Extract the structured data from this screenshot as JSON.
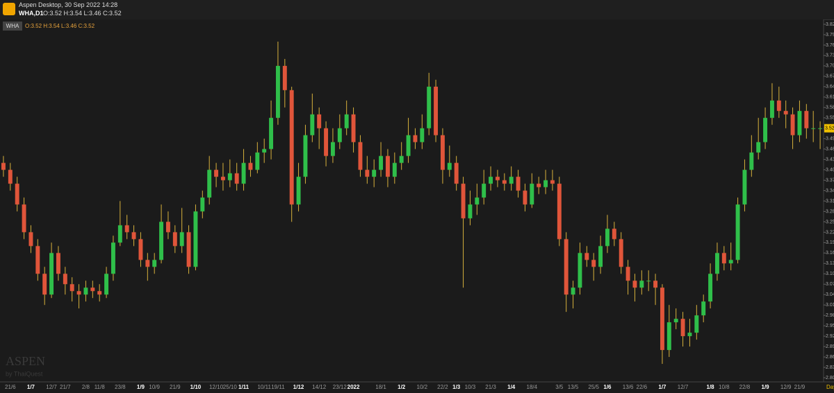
{
  "header": {
    "app": "Aspen Desktop, 30 Sep 2022 14:28",
    "symbol": "WHA,D1",
    "ohlc": "O:3.52 H:3.54 L:3.46 C:3.52"
  },
  "chart_data": {
    "type": "candlestick",
    "legend": {
      "symbol": "WHA",
      "ohlc": "O:3.52 H:3.54 L:3.46 C:3.52"
    },
    "watermark": {
      "brand": "ASPEN",
      "by": "by ThaiQuest"
    },
    "timeframe": "Day",
    "up_color": "#2fbf4a",
    "down_color": "#e0553a",
    "last_price_color": "#f0c000",
    "ylim": [
      2.788,
      3.834
    ],
    "yticks": [
      {
        "value": 2.8,
        "label": "2.80"
      },
      2.83,
      2.86,
      2.89,
      2.92,
      2.95,
      2.98,
      3.01,
      3.04,
      3.07,
      {
        "value": 3.1,
        "label": "3.10"
      },
      3.13,
      3.16,
      3.19,
      3.22,
      3.25,
      3.28,
      3.31,
      3.34,
      3.37,
      {
        "value": 3.4,
        "label": "3.40"
      },
      3.43,
      3.46,
      3.49,
      3.52,
      3.55,
      3.58,
      3.61,
      3.64,
      3.67,
      {
        "value": 3.7,
        "label": "3.70"
      },
      3.73,
      3.76,
      3.79,
      3.82
    ],
    "categories": [
      null,
      "21/6",
      null,
      null,
      "1/7",
      null,
      null,
      "12/7",
      null,
      "21/7",
      null,
      null,
      "2/8",
      null,
      "11/8",
      null,
      null,
      "23/8",
      null,
      null,
      "1/9",
      null,
      "10/9",
      null,
      null,
      "21/9",
      null,
      null,
      "1/10",
      null,
      null,
      "12/10",
      null,
      "25/10",
      null,
      "1/11",
      null,
      null,
      "10/11",
      null,
      "19/11",
      null,
      null,
      "1/12",
      null,
      null,
      "14/12",
      null,
      null,
      "23/12",
      null,
      "2022",
      null,
      null,
      null,
      "18/1",
      null,
      null,
      "1/2",
      null,
      null,
      "10/2",
      null,
      null,
      "22/2",
      null,
      "1/3",
      null,
      "10/3",
      null,
      null,
      "21/3",
      null,
      null,
      "1/4",
      null,
      null,
      "18/4",
      null,
      null,
      null,
      "3/5",
      null,
      "13/5",
      null,
      null,
      "25/5",
      null,
      "1/6",
      null,
      null,
      "13/6",
      null,
      "22/6",
      null,
      null,
      "1/7",
      null,
      null,
      "12/7",
      null,
      null,
      null,
      "1/8",
      null,
      "10/8",
      null,
      null,
      "22/8",
      null,
      null,
      "1/9",
      null,
      null,
      "12/9",
      null,
      "21/9",
      null,
      null,
      null
    ],
    "open": [
      3.42,
      3.4,
      3.36,
      3.3,
      3.22,
      3.18,
      3.1,
      3.04,
      3.16,
      3.1,
      3.07,
      3.05,
      3.04,
      3.06,
      3.05,
      3.04,
      3.1,
      3.19,
      3.24,
      3.22,
      3.2,
      3.14,
      3.12,
      3.14,
      3.25,
      3.22,
      3.18,
      3.22,
      3.12,
      3.28,
      3.32,
      3.4,
      3.38,
      3.37,
      3.39,
      3.36,
      3.42,
      3.4,
      3.45,
      3.46,
      3.55,
      3.7,
      3.63,
      3.3,
      3.38,
      3.5,
      3.56,
      3.52,
      3.44,
      3.48,
      3.52,
      3.56,
      3.48,
      3.4,
      3.38,
      3.4,
      3.44,
      3.38,
      3.42,
      3.44,
      3.5,
      3.48,
      3.52,
      3.64,
      3.5,
      3.4,
      3.42,
      3.36,
      3.26,
      3.3,
      3.32,
      3.36,
      3.38,
      3.37,
      3.36,
      3.38,
      3.34,
      3.3,
      3.36,
      3.35,
      3.37,
      3.36,
      3.2,
      3.04,
      3.06,
      3.16,
      3.14,
      3.12,
      3.18,
      3.23,
      3.2,
      3.12,
      3.08,
      3.06,
      3.08,
      3.08,
      3.06,
      2.88,
      2.96,
      2.97,
      2.92,
      2.93,
      2.98,
      3.02,
      3.1,
      3.16,
      3.13,
      3.14,
      3.3,
      3.4,
      3.45,
      3.48,
      3.55,
      3.6,
      3.57,
      3.56,
      3.5,
      3.57,
      3.52,
      3.52
    ],
    "high": [
      3.44,
      3.42,
      3.38,
      3.32,
      3.24,
      3.2,
      3.12,
      3.19,
      3.18,
      3.12,
      3.09,
      3.07,
      3.08,
      3.08,
      3.07,
      3.12,
      3.21,
      3.31,
      3.27,
      3.24,
      3.22,
      3.16,
      3.16,
      3.3,
      3.28,
      3.24,
      3.29,
      3.24,
      3.3,
      3.34,
      3.44,
      3.42,
      3.42,
      3.43,
      3.42,
      3.46,
      3.44,
      3.48,
      3.49,
      3.6,
      3.77,
      3.72,
      3.64,
      3.42,
      3.53,
      3.62,
      3.58,
      3.54,
      3.52,
      3.56,
      3.6,
      3.58,
      3.5,
      3.44,
      3.43,
      3.48,
      3.46,
      3.45,
      3.48,
      3.55,
      3.52,
      3.56,
      3.68,
      3.66,
      3.52,
      3.47,
      3.44,
      3.38,
      3.34,
      3.36,
      3.4,
      3.41,
      3.4,
      3.39,
      3.41,
      3.4,
      3.36,
      3.39,
      3.38,
      3.4,
      3.4,
      3.38,
      3.22,
      3.08,
      3.19,
      3.18,
      3.16,
      3.21,
      3.27,
      3.25,
      3.22,
      3.14,
      3.1,
      3.11,
      3.11,
      3.1,
      3.07,
      3.01,
      3.0,
      2.99,
      2.97,
      3.01,
      3.04,
      3.13,
      3.19,
      3.18,
      3.19,
      3.32,
      3.43,
      3.5,
      3.55,
      3.58,
      3.65,
      3.64,
      3.6,
      3.58,
      3.6,
      3.59,
      3.57,
      3.54
    ],
    "low": [
      3.38,
      3.34,
      3.28,
      3.2,
      3.16,
      3.08,
      3.01,
      3.03,
      3.08,
      3.04,
      3.02,
      3.0,
      3.02,
      3.03,
      3.02,
      3.03,
      3.08,
      3.18,
      3.2,
      3.18,
      3.12,
      3.08,
      3.1,
      3.13,
      3.2,
      3.16,
      3.16,
      3.1,
      3.11,
      3.26,
      3.3,
      3.35,
      3.34,
      3.35,
      3.34,
      3.34,
      3.38,
      3.39,
      3.42,
      3.43,
      3.53,
      3.58,
      3.25,
      3.28,
      3.36,
      3.48,
      3.46,
      3.41,
      3.42,
      3.46,
      3.5,
      3.45,
      3.38,
      3.36,
      3.35,
      3.38,
      3.35,
      3.36,
      3.4,
      3.42,
      3.46,
      3.46,
      3.5,
      3.48,
      3.36,
      3.38,
      3.34,
      3.06,
      3.24,
      3.27,
      3.3,
      3.34,
      3.35,
      3.34,
      3.34,
      3.32,
      3.28,
      3.29,
      3.33,
      3.33,
      3.34,
      3.18,
      2.99,
      3.0,
      3.04,
      3.12,
      3.08,
      3.1,
      3.16,
      3.18,
      3.1,
      3.04,
      3.02,
      3.04,
      3.05,
      3.01,
      2.84,
      2.86,
      2.94,
      2.89,
      2.89,
      2.91,
      2.96,
      3.0,
      3.08,
      3.11,
      3.11,
      3.13,
      3.28,
      3.38,
      3.43,
      3.46,
      3.53,
      3.55,
      3.52,
      3.46,
      3.48,
      3.49,
      3.48,
      3.46
    ],
    "close": [
      3.4,
      3.36,
      3.3,
      3.22,
      3.18,
      3.1,
      3.04,
      3.16,
      3.1,
      3.07,
      3.05,
      3.04,
      3.06,
      3.05,
      3.04,
      3.1,
      3.19,
      3.24,
      3.22,
      3.2,
      3.14,
      3.12,
      3.14,
      3.25,
      3.22,
      3.18,
      3.22,
      3.12,
      3.28,
      3.32,
      3.4,
      3.38,
      3.37,
      3.39,
      3.36,
      3.42,
      3.4,
      3.45,
      3.46,
      3.55,
      3.7,
      3.63,
      3.3,
      3.38,
      3.5,
      3.56,
      3.52,
      3.44,
      3.48,
      3.52,
      3.56,
      3.48,
      3.4,
      3.38,
      3.4,
      3.44,
      3.38,
      3.42,
      3.44,
      3.5,
      3.48,
      3.52,
      3.64,
      3.5,
      3.4,
      3.42,
      3.36,
      3.26,
      3.3,
      3.32,
      3.36,
      3.38,
      3.37,
      3.36,
      3.38,
      3.34,
      3.3,
      3.36,
      3.35,
      3.37,
      3.36,
      3.2,
      3.04,
      3.06,
      3.16,
      3.14,
      3.12,
      3.18,
      3.23,
      3.2,
      3.12,
      3.08,
      3.06,
      3.08,
      3.08,
      3.06,
      2.88,
      2.96,
      2.97,
      2.92,
      2.93,
      2.98,
      3.02,
      3.1,
      3.16,
      3.13,
      3.14,
      3.3,
      3.4,
      3.45,
      3.48,
      3.55,
      3.6,
      3.57,
      3.56,
      3.5,
      3.57,
      3.52,
      3.52,
      3.52
    ]
  }
}
